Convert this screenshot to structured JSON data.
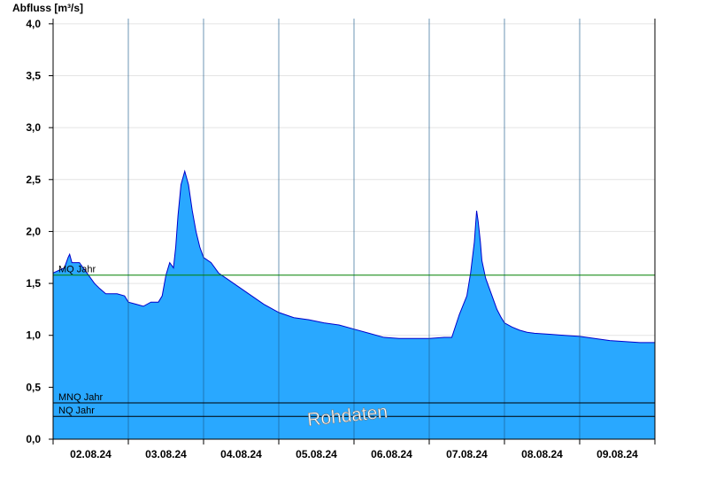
{
  "chart_data": {
    "type": "area",
    "ylabel": "Abfluss [m³/s]",
    "xlabel": "",
    "ylim": [
      0,
      4.05
    ],
    "yticks": [
      0,
      0.5,
      1.0,
      1.5,
      2.0,
      2.5,
      3.0,
      3.5,
      4.0
    ],
    "ytick_labels": [
      "0,0",
      "0,5",
      "1,0",
      "1,5",
      "2,0",
      "2,5",
      "3,0",
      "3,5",
      "4,0"
    ],
    "xlim": [
      0,
      8
    ],
    "xtick_labels": [
      "02.08.24",
      "03.08.24",
      "04.08.24",
      "05.08.24",
      "06.08.24",
      "07.08.24",
      "08.08.24",
      "09.08.24"
    ],
    "day_boundaries": [
      1,
      2,
      3,
      4,
      5,
      6,
      7
    ],
    "grid": "horizontal",
    "colors": {
      "fill": "#29a8ff",
      "line": "#0000cc",
      "mq": "#008000",
      "ref": "#000000"
    },
    "reference_lines": [
      {
        "name": "MQ Jahr",
        "value": 1.58,
        "color": "#008000"
      },
      {
        "name": "MNQ Jahr",
        "value": 0.35,
        "color": "#000000"
      },
      {
        "name": "NQ Jahr",
        "value": 0.22,
        "color": "#000000"
      }
    ],
    "watermark": "Rohdaten",
    "series": [
      {
        "x": [
          0,
          0.15,
          0.2,
          0.22,
          0.25,
          0.35,
          0.45,
          0.55,
          0.62,
          0.7,
          0.85,
          0.95,
          1.0,
          1.1,
          1.2,
          1.3,
          1.35,
          1.4,
          1.45,
          1.5,
          1.55,
          1.6,
          1.63,
          1.66,
          1.7,
          1.75,
          1.8,
          1.85,
          1.9,
          1.95,
          2.0,
          2.1,
          2.2,
          2.3,
          2.4,
          2.5,
          2.6,
          2.8,
          3.0,
          3.2,
          3.4,
          3.6,
          3.8,
          4.0,
          4.2,
          4.4,
          4.6,
          4.8,
          5.0,
          5.2,
          5.3,
          5.4,
          5.5,
          5.55,
          5.6,
          5.63,
          5.65,
          5.68,
          5.7,
          5.75,
          5.8,
          5.85,
          5.9,
          5.95,
          6.0,
          6.1,
          6.2,
          6.3,
          6.4,
          6.6,
          6.8,
          7.0,
          7.2,
          7.4,
          7.6,
          7.8,
          8.0
        ],
        "y": [
          1.6,
          1.65,
          1.75,
          1.78,
          1.7,
          1.7,
          1.6,
          1.5,
          1.45,
          1.4,
          1.4,
          1.38,
          1.32,
          1.3,
          1.28,
          1.32,
          1.32,
          1.32,
          1.38,
          1.58,
          1.7,
          1.65,
          1.85,
          2.15,
          2.45,
          2.58,
          2.45,
          2.2,
          2.0,
          1.85,
          1.75,
          1.7,
          1.6,
          1.55,
          1.5,
          1.45,
          1.4,
          1.3,
          1.22,
          1.17,
          1.15,
          1.12,
          1.1,
          1.06,
          1.02,
          0.98,
          0.97,
          0.97,
          0.97,
          0.98,
          0.98,
          1.2,
          1.38,
          1.6,
          1.9,
          2.2,
          2.1,
          1.9,
          1.72,
          1.55,
          1.45,
          1.35,
          1.25,
          1.18,
          1.12,
          1.08,
          1.05,
          1.03,
          1.02,
          1.01,
          1.0,
          0.99,
          0.97,
          0.95,
          0.94,
          0.93,
          0.93
        ]
      }
    ]
  }
}
